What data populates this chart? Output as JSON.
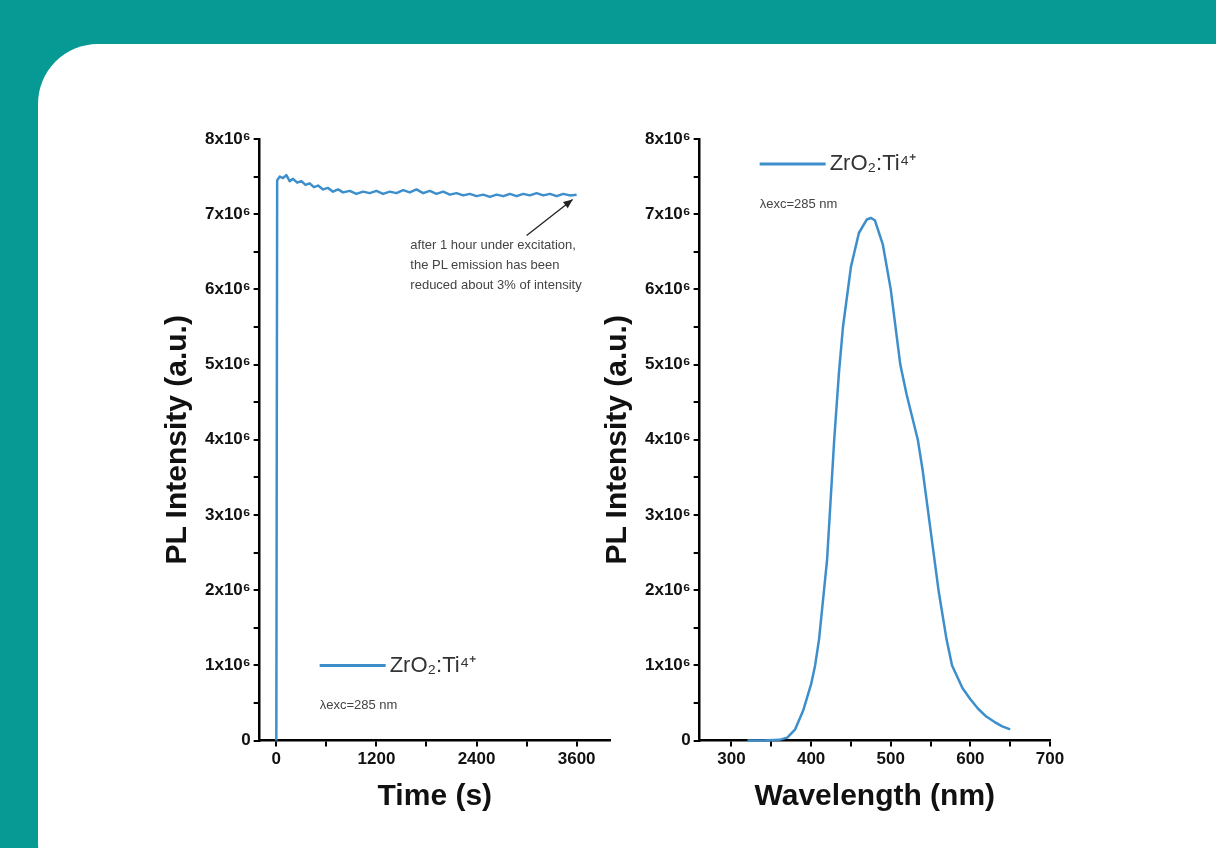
{
  "chart_data": [
    {
      "type": "line",
      "xlabel": "Time (s)",
      "ylabel": "PL Intensity (a.u.)",
      "legend": "bottom left",
      "grid": false,
      "marker": "none",
      "line_style": "solid",
      "xlim": [
        -200,
        4000
      ],
      "xticks": [
        0,
        {
          "value": 600,
          "label": null
        },
        1200,
        {
          "value": 1800,
          "label": null
        },
        2400,
        {
          "value": 3000,
          "label": null
        },
        3600
      ],
      "ylim": [
        0,
        8000000
      ],
      "yticks": [
        0,
        {
          "value": 500000,
          "label": null
        },
        {
          "value": 1000000,
          "label": "1x10⁶"
        },
        {
          "value": 1500000,
          "label": null
        },
        {
          "value": 2000000,
          "label": "2x10⁶"
        },
        {
          "value": 2500000,
          "label": null
        },
        {
          "value": 3000000,
          "label": "3x10⁶"
        },
        {
          "value": 3500000,
          "label": null
        },
        {
          "value": 4000000,
          "label": "4x10⁶"
        },
        {
          "value": 4500000,
          "label": null
        },
        {
          "value": 5000000,
          "label": "5x10⁶"
        },
        {
          "value": 5500000,
          "label": null
        },
        {
          "value": 6000000,
          "label": "6x10⁶"
        },
        {
          "value": 6500000,
          "label": null
        },
        {
          "value": 7000000,
          "label": "7x10⁶"
        },
        {
          "value": 7500000,
          "label": null
        },
        {
          "value": 8000000,
          "label": "8x10⁶"
        }
      ],
      "annotations": [
        {
          "text": "after 1 hour under excitation,\nthe PL emission has been\nreduced about 3% of intensity",
          "x": 3600,
          "y": 7250000
        },
        "λexc=285 nm"
      ],
      "x": [
        0,
        10,
        40,
        80,
        120,
        160,
        200,
        250,
        300,
        350,
        400,
        450,
        500,
        560,
        620,
        680,
        740,
        800,
        880,
        960,
        1040,
        1120,
        1200,
        1280,
        1360,
        1440,
        1520,
        1600,
        1680,
        1760,
        1840,
        1920,
        2000,
        2080,
        2160,
        2240,
        2320,
        2400,
        2480,
        2560,
        2640,
        2720,
        2800,
        2880,
        2960,
        3040,
        3120,
        3200,
        3280,
        3360,
        3440,
        3520,
        3600
      ],
      "series": [
        {
          "name": "ZrO₂:Ti⁴⁺",
          "color": "#3d8fcc",
          "values": [
            0,
            7450000,
            7500000,
            7480000,
            7520000,
            7440000,
            7470000,
            7420000,
            7440000,
            7390000,
            7410000,
            7360000,
            7380000,
            7330000,
            7350000,
            7300000,
            7330000,
            7290000,
            7310000,
            7270000,
            7300000,
            7280000,
            7310000,
            7270000,
            7300000,
            7280000,
            7320000,
            7290000,
            7330000,
            7280000,
            7310000,
            7270000,
            7300000,
            7260000,
            7280000,
            7250000,
            7270000,
            7240000,
            7260000,
            7230000,
            7260000,
            7240000,
            7270000,
            7240000,
            7270000,
            7250000,
            7280000,
            7250000,
            7270000,
            7240000,
            7270000,
            7250000,
            7260000
          ]
        }
      ]
    },
    {
      "type": "line",
      "xlabel": "Wavelength (nm)",
      "ylabel": "PL Intensity (a.u.)",
      "legend": "top left",
      "grid": false,
      "marker": "none",
      "line_style": "solid",
      "xlim": [
        260,
        700
      ],
      "xticks": [
        300,
        {
          "value": 350,
          "label": null
        },
        400,
        {
          "value": 450,
          "label": null
        },
        500,
        {
          "value": 550,
          "label": null
        },
        600,
        {
          "value": 650,
          "label": null
        },
        700
      ],
      "ylim": [
        0,
        8000000
      ],
      "yticks": [
        0,
        {
          "value": 500000,
          "label": null
        },
        {
          "value": 1000000,
          "label": "1x10⁶"
        },
        {
          "value": 1500000,
          "label": null
        },
        {
          "value": 2000000,
          "label": "2x10⁶"
        },
        {
          "value": 2500000,
          "label": null
        },
        {
          "value": 3000000,
          "label": "3x10⁶"
        },
        {
          "value": 3500000,
          "label": null
        },
        {
          "value": 4000000,
          "label": "4x10⁶"
        },
        {
          "value": 4500000,
          "label": null
        },
        {
          "value": 5000000,
          "label": "5x10⁶"
        },
        {
          "value": 5500000,
          "label": null
        },
        {
          "value": 6000000,
          "label": "6x10⁶"
        },
        {
          "value": 6500000,
          "label": null
        },
        {
          "value": 7000000,
          "label": "7x10⁶"
        },
        {
          "value": 7500000,
          "label": null
        },
        {
          "value": 8000000,
          "label": "8x10⁶"
        }
      ],
      "annotations": [
        "λexc=285 nm"
      ],
      "x": [
        320,
        340,
        360,
        370,
        380,
        390,
        400,
        405,
        410,
        420,
        429,
        435,
        440,
        450,
        460,
        470,
        475,
        480,
        490,
        500,
        512,
        520,
        534,
        540,
        550,
        560,
        570,
        577,
        590,
        600,
        610,
        620,
        630,
        640,
        650
      ],
      "series": [
        {
          "name": "ZrO₂:Ti⁴⁺",
          "color": "#3d8fcc",
          "values": [
            0,
            0,
            10000,
            40000,
            150000,
            400000,
            750000,
            1000000,
            1350000,
            2400000,
            4000000,
            4900000,
            5500000,
            6300000,
            6750000,
            6930000,
            6950000,
            6920000,
            6600000,
            6000000,
            5000000,
            4600000,
            4000000,
            3600000,
            2800000,
            2000000,
            1350000,
            1000000,
            700000,
            550000,
            420000,
            320000,
            250000,
            190000,
            150000
          ]
        }
      ]
    }
  ]
}
